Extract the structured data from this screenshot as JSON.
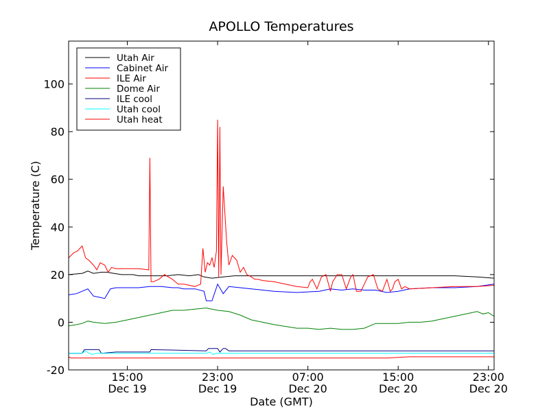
{
  "chart_data": {
    "type": "line",
    "title": "APOLLO Temperatures",
    "xlabel": "Date (GMT)",
    "ylabel": "Temperature (C)",
    "xunits": "hours since Dec 19 00:00 GMT",
    "xlim": [
      9.8,
      47.5
    ],
    "ylim": [
      -20,
      118
    ],
    "yticks": [
      -20,
      0,
      20,
      40,
      60,
      80,
      100
    ],
    "xticks": [
      {
        "value": 15,
        "time": "15:00",
        "date": "Dec 19"
      },
      {
        "value": 23,
        "time": "23:00",
        "date": "Dec 19"
      },
      {
        "value": 31,
        "time": "07:00",
        "date": "Dec 20"
      },
      {
        "value": 39,
        "time": "15:00",
        "date": "Dec 20"
      },
      {
        "value": 47,
        "time": "23:00",
        "date": "Dec 20"
      }
    ],
    "legend_position": "top-left",
    "series": [
      {
        "name": "Utah Air",
        "color": "#000000",
        "x": [
          9.8,
          11,
          11.5,
          12,
          12.7,
          13.2,
          13.8,
          14.5,
          15.5,
          16,
          17,
          17.5,
          18.5,
          19.5,
          20.5,
          21.3,
          21.8,
          22.5,
          23.5,
          24.5,
          25,
          26,
          28,
          30,
          32,
          34,
          36,
          38,
          40,
          42,
          44,
          46,
          47.5
        ],
        "y": [
          20,
          20.5,
          21.5,
          20.5,
          21,
          21,
          20.5,
          20,
          20,
          19.5,
          19.5,
          19.5,
          19.5,
          20,
          19.5,
          20,
          19,
          18.5,
          19,
          19.5,
          19.5,
          19.5,
          19.5,
          19.5,
          19.5,
          19.5,
          19.5,
          19.5,
          19.5,
          19.5,
          19.5,
          19,
          18.5
        ]
      },
      {
        "name": "Cabinet Air",
        "color": "#0000ff",
        "x": [
          9.8,
          10.5,
          11,
          11.5,
          12,
          12.5,
          13,
          13.5,
          14,
          15,
          16,
          17,
          18,
          19,
          19.5,
          20,
          21,
          21.8,
          22,
          22.5,
          23,
          23.5,
          24,
          25,
          26,
          28,
          30,
          32,
          33,
          34,
          35,
          36,
          37,
          38,
          39,
          40,
          42,
          44,
          46,
          47.5
        ],
        "y": [
          11.5,
          12,
          13,
          14,
          11,
          10.5,
          10,
          14,
          14.5,
          14.5,
          14.5,
          15,
          15,
          14.5,
          14.5,
          14,
          14,
          13,
          9,
          9,
          16,
          12,
          15,
          14.5,
          14,
          13,
          12.5,
          13,
          14,
          13.5,
          14,
          13.5,
          13.5,
          12.5,
          13,
          14,
          14.5,
          14.5,
          15,
          16
        ]
      },
      {
        "name": "ILE Air",
        "color": "#ff0000",
        "x": [
          9.8,
          10.2,
          10.6,
          11,
          11.3,
          11.6,
          12,
          12.3,
          12.6,
          13,
          13.3,
          13.6,
          14,
          14.5,
          15,
          16,
          16.9,
          17,
          17.1,
          17.3,
          17.8,
          18.3,
          19,
          19.5,
          20,
          20.5,
          21,
          21.5,
          21.7,
          21.9,
          22.1,
          22.3,
          22.5,
          22.7,
          22.9,
          23,
          23.1,
          23.2,
          23.3,
          23.5,
          23.8,
          24,
          24.3,
          24.7,
          25,
          25.3,
          25.6,
          26,
          26.3,
          26.6,
          27,
          28,
          29,
          30,
          31,
          31.2,
          31.4,
          31.8,
          32.2,
          32.6,
          33,
          33.2,
          33.6,
          34,
          34.4,
          34.8,
          35,
          35.3,
          35.7,
          36,
          36.3,
          36.8,
          37.2,
          37.6,
          38,
          38.3,
          38.5,
          38.7,
          39,
          39.3,
          39.6,
          40,
          42,
          44,
          46,
          47.5
        ],
        "y": [
          27,
          29,
          30,
          32,
          27,
          26,
          24,
          22,
          25,
          24,
          21,
          23,
          22.5,
          22.5,
          22.5,
          22.5,
          22,
          69,
          17,
          17,
          18,
          20,
          18,
          16,
          16,
          15.5,
          15,
          16,
          31,
          21,
          25,
          24,
          27,
          23,
          30,
          85,
          19,
          82,
          20,
          57,
          34,
          24,
          28,
          26,
          21,
          23,
          20,
          19,
          18,
          18,
          17.5,
          17,
          16,
          15,
          14.5,
          17,
          18,
          14,
          19,
          20,
          13,
          17,
          20,
          20,
          14,
          19,
          20,
          13,
          13,
          16,
          19,
          20,
          14,
          13,
          18,
          13,
          14,
          17,
          18,
          14,
          15,
          14,
          14.5,
          15,
          15,
          15.5
        ]
      },
      {
        "name": "Dome Air",
        "color": "#008000",
        "x": [
          9.8,
          10.5,
          11,
          11.5,
          12,
          13,
          14,
          15,
          16,
          17,
          18,
          19,
          20,
          21,
          22,
          23,
          24,
          25,
          26,
          28,
          30,
          31,
          32,
          33,
          34,
          35,
          36,
          37,
          38,
          39,
          40,
          41,
          42,
          43,
          44,
          45,
          46,
          46.5,
          47,
          47.5
        ],
        "y": [
          -1.5,
          -1,
          -0.5,
          0.5,
          0,
          -0.5,
          0,
          1,
          2,
          3,
          4,
          5,
          5,
          5.5,
          6,
          5,
          4.5,
          3,
          1,
          -1,
          -2.5,
          -2.5,
          -3,
          -2.5,
          -3,
          -3,
          -2.5,
          -0.5,
          -0.5,
          -0.5,
          0,
          0,
          0.5,
          1.5,
          2.5,
          3.5,
          4.5,
          3.5,
          4,
          2.5
        ]
      },
      {
        "name": "ILE cool",
        "color": "#000080",
        "x": [
          9.8,
          11,
          11.2,
          12.5,
          12.7,
          14,
          17,
          17.1,
          22,
          22.2,
          23,
          23.2,
          23.5,
          23.7,
          24,
          25,
          30,
          40,
          47.5
        ],
        "y": [
          -13,
          -13,
          -11.5,
          -11.5,
          -13,
          -12.5,
          -12.5,
          -11.5,
          -12,
          -11,
          -11,
          -12.5,
          -11,
          -11,
          -12,
          -12,
          -12,
          -12,
          -12
        ]
      },
      {
        "name": "Utah cool",
        "color": "#00ffff",
        "x": [
          9.8,
          10.5,
          11,
          11.3,
          11.6,
          11.9,
          12.3,
          13,
          14,
          16,
          18,
          20,
          22,
          22.3,
          22.6,
          22.9,
          23.5,
          25,
          28,
          32,
          36,
          40,
          44,
          47.5
        ],
        "y": [
          -13,
          -13,
          -13,
          -12,
          -13,
          -13.5,
          -13,
          -13,
          -13,
          -13,
          -13,
          -13,
          -13,
          -12.5,
          -13.5,
          -13,
          -13,
          -13,
          -13,
          -13,
          -13,
          -13,
          -13,
          -13
        ]
      },
      {
        "name": "Utah heat",
        "color": "#ff0000",
        "x": [
          9.8,
          10,
          10.3,
          11,
          12,
          13,
          14,
          15,
          16,
          17,
          18,
          19,
          20,
          21,
          22,
          23,
          24,
          26,
          28,
          30,
          32,
          34,
          36,
          38,
          40,
          42,
          44,
          46,
          47.5
        ],
        "y": [
          -14.5,
          -15,
          -15,
          -15,
          -15,
          -15,
          -15,
          -15,
          -15,
          -15,
          -15,
          -15,
          -15,
          -15,
          -15,
          -15,
          -15,
          -15,
          -15,
          -15,
          -15,
          -15,
          -15,
          -15,
          -14.5,
          -14.5,
          -14.5,
          -14.5,
          -14.5
        ]
      }
    ]
  }
}
